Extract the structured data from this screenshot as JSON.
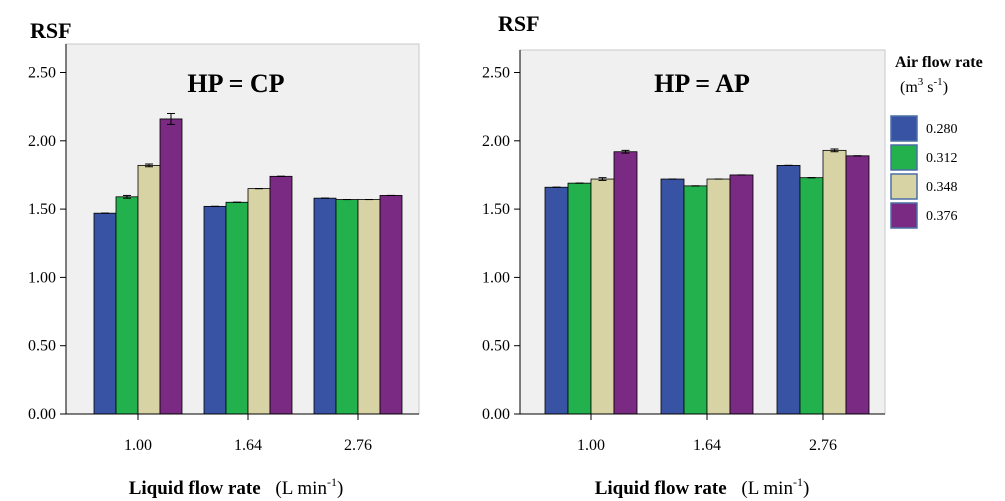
{
  "chart_data": [
    {
      "type": "bar",
      "title": "HP = CP",
      "ylabel": "RSF",
      "xlabel": "Liquid flow rate",
      "xunit": "(L min",
      "xunit_sup": "-1",
      "xunit_end": ")",
      "ylim": [
        0,
        2.75
      ],
      "yticks": [
        0.0,
        0.5,
        1.0,
        1.5,
        2.0,
        2.5
      ],
      "ytick_labels": [
        "0.00",
        "0.50",
        "1.00",
        "1.50",
        "2.00",
        "2.50"
      ],
      "categories": [
        "1.00",
        "1.64",
        "2.76"
      ],
      "series": [
        {
          "name": "0.280",
          "values": [
            1.47,
            1.52,
            1.58
          ],
          "errors": [
            0.0,
            0.0,
            0.0
          ]
        },
        {
          "name": "0.312",
          "values": [
            1.59,
            1.55,
            1.57
          ],
          "errors": [
            0.01,
            0.0,
            0.0
          ]
        },
        {
          "name": "0.348",
          "values": [
            1.82,
            1.65,
            1.57
          ],
          "errors": [
            0.01,
            0.0,
            0.0
          ]
        },
        {
          "name": "0.376",
          "values": [
            2.16,
            1.74,
            1.6
          ],
          "errors": [
            0.04,
            0.0,
            0.0
          ]
        }
      ],
      "grid": false
    },
    {
      "type": "bar",
      "title": "HP = AP",
      "ylabel": "RSF",
      "xlabel": "Liquid flow rate",
      "xunit": "(L min",
      "xunit_sup": "-1",
      "xunit_end": ")",
      "ylim": [
        0,
        2.75
      ],
      "yticks": [
        0.0,
        0.5,
        1.0,
        1.5,
        2.0,
        2.5
      ],
      "ytick_labels": [
        "0.00",
        "0.50",
        "1.00",
        "1.50",
        "2.00",
        "2.50"
      ],
      "categories": [
        "1.00",
        "1.64",
        "2.76"
      ],
      "series": [
        {
          "name": "0.280",
          "values": [
            1.66,
            1.72,
            1.82
          ],
          "errors": [
            0.0,
            0.0,
            0.0
          ]
        },
        {
          "name": "0.312",
          "values": [
            1.69,
            1.67,
            1.73
          ],
          "errors": [
            0.0,
            0.0,
            0.0
          ]
        },
        {
          "name": "0.348",
          "values": [
            1.72,
            1.72,
            1.93
          ],
          "errors": [
            0.01,
            0.0,
            0.01
          ]
        },
        {
          "name": "0.376",
          "values": [
            1.92,
            1.75,
            1.89
          ],
          "errors": [
            0.01,
            0.0,
            0.0
          ]
        }
      ],
      "grid": false
    }
  ],
  "legend": {
    "title": "Air flow rate",
    "unit": "(m",
    "unit_sup1": "3",
    "unit_mid": " s",
    "unit_sup2": "-1",
    "unit_end": ")",
    "placement": "right",
    "items": [
      "0.280",
      "0.312",
      "0.348",
      "0.376"
    ]
  },
  "colors": {
    "series": [
      "#3953a4",
      "#22b14c",
      "#d8d3a4",
      "#7a2a82"
    ],
    "plot_background": "#f0f0f0",
    "axis": "#000000"
  }
}
